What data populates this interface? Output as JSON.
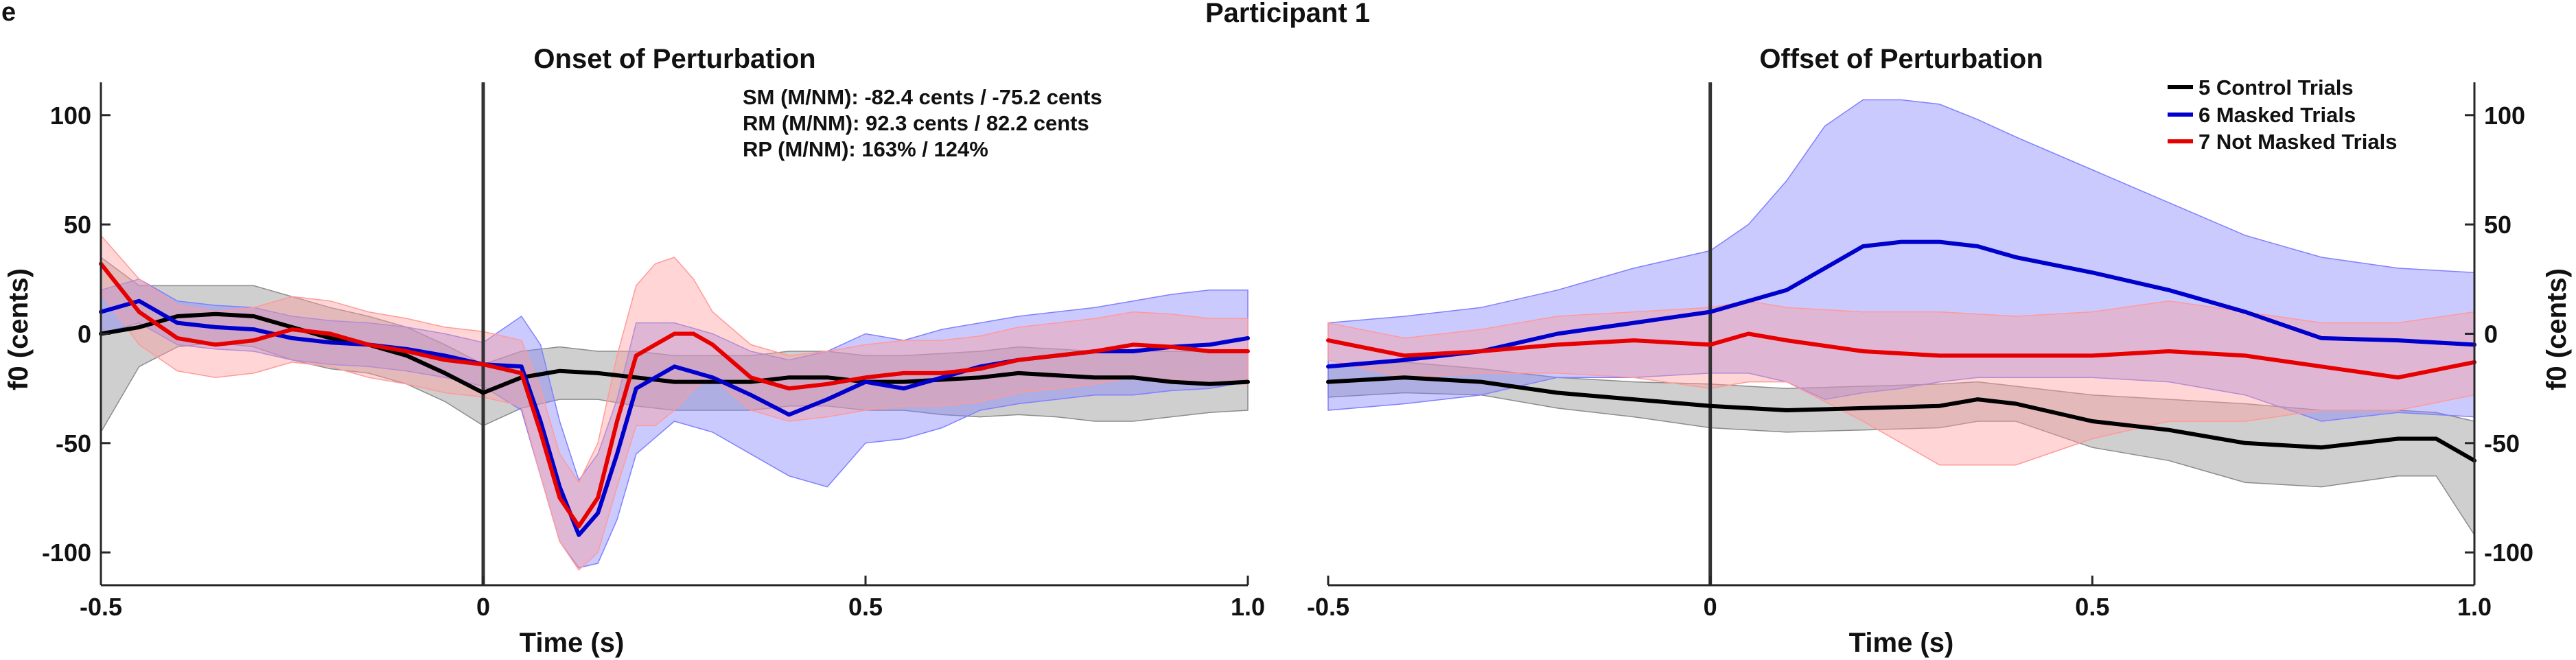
{
  "figure": {
    "panel_label": "e",
    "title": "Participant 1"
  },
  "legend": {
    "placement": "top-right of right panel",
    "entries": [
      {
        "label": "5 Control Trials",
        "color": "#000000"
      },
      {
        "label": "6 Masked Trials",
        "color": "#0000cc"
      },
      {
        "label": "7 Not Masked Trials",
        "color": "#e60000"
      }
    ]
  },
  "annotations": [
    "SM (M/NM): -82.4 cents / -75.2 cents",
    "RM (M/NM): 92.3 cents / 82.2 cents",
    "RP (M/NM): 163% / 124%"
  ],
  "chart_data": [
    {
      "type": "line",
      "title": "Onset of Perturbation",
      "xlabel": "Time (s)",
      "ylabel": "f0 (cents)",
      "xlim": [
        -0.5,
        1.0
      ],
      "ylim": [
        -115,
        115
      ],
      "xticks": [
        -0.5,
        0,
        0.5,
        1.0
      ],
      "xtick_labels": [
        "-0.5",
        "0",
        "0.5",
        "1.0"
      ],
      "yticks": [
        -100,
        -50,
        0,
        50,
        100
      ],
      "ytick_labels": [
        "-100",
        "-50",
        "0",
        "50",
        "100"
      ],
      "grid": false,
      "vline_x": 0,
      "series": [
        {
          "name": "5 Control Trials",
          "color": "#000000",
          "band_color": "#8c8c8c",
          "x": [
            -0.5,
            -0.45,
            -0.4,
            -0.35,
            -0.3,
            -0.25,
            -0.2,
            -0.15,
            -0.1,
            -0.05,
            0,
            0.05,
            0.1,
            0.15,
            0.2,
            0.25,
            0.3,
            0.35,
            0.4,
            0.45,
            0.5,
            0.55,
            0.6,
            0.65,
            0.7,
            0.75,
            0.8,
            0.85,
            0.9,
            0.95,
            1.0
          ],
          "y": [
            0,
            3,
            8,
            9,
            8,
            3,
            -2,
            -5,
            -10,
            -18,
            -27,
            -20,
            -17,
            -18,
            -20,
            -22,
            -22,
            -22,
            -20,
            -20,
            -22,
            -22,
            -21,
            -20,
            -18,
            -19,
            -20,
            -20,
            -22,
            -23,
            -22
          ],
          "upper": [
            35,
            22,
            22,
            22,
            22,
            17,
            12,
            8,
            3,
            -5,
            -14,
            -8,
            -6,
            -8,
            -8,
            -10,
            -10,
            -10,
            -8,
            -8,
            -10,
            -10,
            -9,
            -8,
            -6,
            -7,
            -8,
            -8,
            -8,
            -8,
            -8
          ],
          "lower": [
            -45,
            -15,
            -6,
            -4,
            -6,
            -12,
            -16,
            -18,
            -23,
            -31,
            -42,
            -34,
            -30,
            -30,
            -33,
            -35,
            -35,
            -35,
            -33,
            -33,
            -35,
            -35,
            -37,
            -38,
            -37,
            -38,
            -40,
            -40,
            -38,
            -36,
            -35
          ]
        },
        {
          "name": "6 Masked Trials",
          "color": "#0000cc",
          "band_color": "#8080ff",
          "x": [
            -0.5,
            -0.45,
            -0.4,
            -0.35,
            -0.3,
            -0.25,
            -0.2,
            -0.15,
            -0.1,
            -0.05,
            0,
            0.05,
            0.075,
            0.1,
            0.125,
            0.15,
            0.175,
            0.2,
            0.25,
            0.3,
            0.35,
            0.4,
            0.45,
            0.5,
            0.55,
            0.6,
            0.65,
            0.7,
            0.75,
            0.8,
            0.85,
            0.9,
            0.95,
            1.0
          ],
          "y": [
            10,
            15,
            5,
            3,
            2,
            -2,
            -4,
            -5,
            -7,
            -10,
            -14,
            -15,
            -40,
            -70,
            -92,
            -82,
            -55,
            -25,
            -15,
            -20,
            -28,
            -37,
            -30,
            -22,
            -25,
            -20,
            -15,
            -12,
            -10,
            -8,
            -8,
            -6,
            -5,
            -2
          ],
          "upper": [
            20,
            25,
            15,
            13,
            12,
            8,
            6,
            5,
            3,
            0,
            -4,
            8,
            -5,
            -40,
            -67,
            -55,
            -30,
            5,
            5,
            0,
            -8,
            -12,
            -8,
            0,
            -3,
            2,
            5,
            8,
            10,
            12,
            15,
            18,
            20,
            20
          ],
          "lower": [
            0,
            5,
            -5,
            -7,
            -8,
            -12,
            -14,
            -15,
            -17,
            -20,
            -24,
            -35,
            -65,
            -95,
            -107,
            -105,
            -85,
            -55,
            -40,
            -45,
            -55,
            -65,
            -70,
            -50,
            -48,
            -43,
            -35,
            -32,
            -30,
            -28,
            -28,
            -26,
            -25,
            -22
          ]
        },
        {
          "name": "7 Not Masked Trials",
          "color": "#e60000",
          "band_color": "#ff9a9a",
          "x": [
            -0.5,
            -0.45,
            -0.4,
            -0.35,
            -0.3,
            -0.25,
            -0.2,
            -0.15,
            -0.1,
            -0.05,
            0,
            0.05,
            0.075,
            0.1,
            0.125,
            0.15,
            0.175,
            0.2,
            0.225,
            0.25,
            0.275,
            0.3,
            0.35,
            0.4,
            0.45,
            0.5,
            0.55,
            0.6,
            0.65,
            0.7,
            0.75,
            0.8,
            0.85,
            0.9,
            0.95,
            1.0
          ],
          "y": [
            32,
            10,
            -2,
            -5,
            -3,
            2,
            0,
            -5,
            -8,
            -12,
            -14,
            -18,
            -45,
            -75,
            -88,
            -75,
            -40,
            -10,
            -5,
            0,
            0,
            -5,
            -20,
            -25,
            -23,
            -20,
            -18,
            -18,
            -16,
            -12,
            -10,
            -8,
            -5,
            -6,
            -8,
            -8
          ],
          "upper": [
            45,
            25,
            13,
            10,
            12,
            17,
            15,
            10,
            7,
            3,
            1,
            -3,
            -25,
            -55,
            -68,
            -50,
            -10,
            22,
            32,
            35,
            25,
            10,
            -5,
            -10,
            -8,
            -5,
            -3,
            -3,
            -1,
            3,
            5,
            7,
            10,
            9,
            7,
            7
          ],
          "lower": [
            19,
            -5,
            -17,
            -20,
            -18,
            -13,
            -15,
            -20,
            -23,
            -27,
            -29,
            -33,
            -65,
            -95,
            -108,
            -100,
            -70,
            -42,
            -42,
            -35,
            -25,
            -20,
            -35,
            -40,
            -38,
            -35,
            -33,
            -33,
            -31,
            -27,
            -25,
            -23,
            -20,
            -21,
            -23,
            -23
          ]
        }
      ]
    },
    {
      "type": "line",
      "title": "Offset of Perturbation",
      "xlabel": "Time (s)",
      "ylabel": "f0 (cents)",
      "xlim": [
        -0.5,
        1.0
      ],
      "ylim": [
        -115,
        115
      ],
      "xticks": [
        -0.5,
        0,
        0.5,
        1.0
      ],
      "xtick_labels": [
        "-0.5",
        "0",
        "0.5",
        "1.0"
      ],
      "yticks": [
        -100,
        -50,
        0,
        50,
        100
      ],
      "ytick_labels": [
        "-100",
        "-50",
        "0",
        "50",
        "100"
      ],
      "yaxis_side": "right",
      "grid": false,
      "vline_x": 0,
      "series": [
        {
          "name": "5 Control Trials",
          "color": "#000000",
          "band_color": "#8c8c8c",
          "x": [
            -0.5,
            -0.4,
            -0.3,
            -0.2,
            -0.1,
            0,
            0.1,
            0.2,
            0.3,
            0.35,
            0.4,
            0.5,
            0.6,
            0.7,
            0.8,
            0.9,
            0.95,
            1.0
          ],
          "y": [
            -22,
            -20,
            -22,
            -27,
            -30,
            -33,
            -35,
            -34,
            -33,
            -30,
            -32,
            -40,
            -44,
            -50,
            -52,
            -48,
            -48,
            -58
          ],
          "upper": [
            -15,
            -13,
            -16,
            -20,
            -22,
            -23,
            -25,
            -24,
            -23,
            -22,
            -24,
            -28,
            -30,
            -32,
            -35,
            -35,
            -36,
            -40
          ],
          "lower": [
            -29,
            -27,
            -28,
            -34,
            -38,
            -43,
            -45,
            -44,
            -43,
            -40,
            -40,
            -52,
            -58,
            -68,
            -70,
            -65,
            -65,
            -92
          ]
        },
        {
          "name": "6 Masked Trials",
          "color": "#0000cc",
          "band_color": "#8080ff",
          "x": [
            -0.5,
            -0.4,
            -0.3,
            -0.2,
            -0.1,
            0,
            0.05,
            0.1,
            0.15,
            0.2,
            0.25,
            0.3,
            0.35,
            0.4,
            0.5,
            0.6,
            0.7,
            0.8,
            0.9,
            1.0
          ],
          "y": [
            -15,
            -12,
            -8,
            0,
            5,
            10,
            15,
            20,
            30,
            40,
            42,
            42,
            40,
            35,
            28,
            20,
            10,
            -2,
            -3,
            -5
          ],
          "upper": [
            5,
            8,
            12,
            20,
            30,
            38,
            50,
            70,
            95,
            107,
            107,
            105,
            98,
            90,
            75,
            60,
            45,
            35,
            30,
            28
          ],
          "lower": [
            -35,
            -32,
            -28,
            -20,
            -20,
            -18,
            -18,
            -22,
            -30,
            -27,
            -25,
            -22,
            -20,
            -20,
            -20,
            -22,
            -28,
            -40,
            -36,
            -38
          ]
        },
        {
          "name": "7 Not Masked Trials",
          "color": "#e60000",
          "band_color": "#ff9a9a",
          "x": [
            -0.5,
            -0.4,
            -0.3,
            -0.2,
            -0.1,
            0,
            0.05,
            0.1,
            0.2,
            0.3,
            0.4,
            0.5,
            0.6,
            0.7,
            0.8,
            0.9,
            1.0
          ],
          "y": [
            -3,
            -10,
            -8,
            -5,
            -3,
            -5,
            0,
            -3,
            -8,
            -10,
            -10,
            -10,
            -8,
            -10,
            -15,
            -20,
            -13
          ],
          "upper": [
            5,
            -2,
            2,
            8,
            10,
            12,
            15,
            12,
            10,
            10,
            8,
            10,
            15,
            10,
            5,
            5,
            10
          ],
          "lower": [
            -12,
            -20,
            -18,
            -18,
            -20,
            -25,
            -22,
            -22,
            -40,
            -60,
            -60,
            -48,
            -40,
            -40,
            -35,
            -35,
            -28
          ]
        }
      ]
    }
  ]
}
